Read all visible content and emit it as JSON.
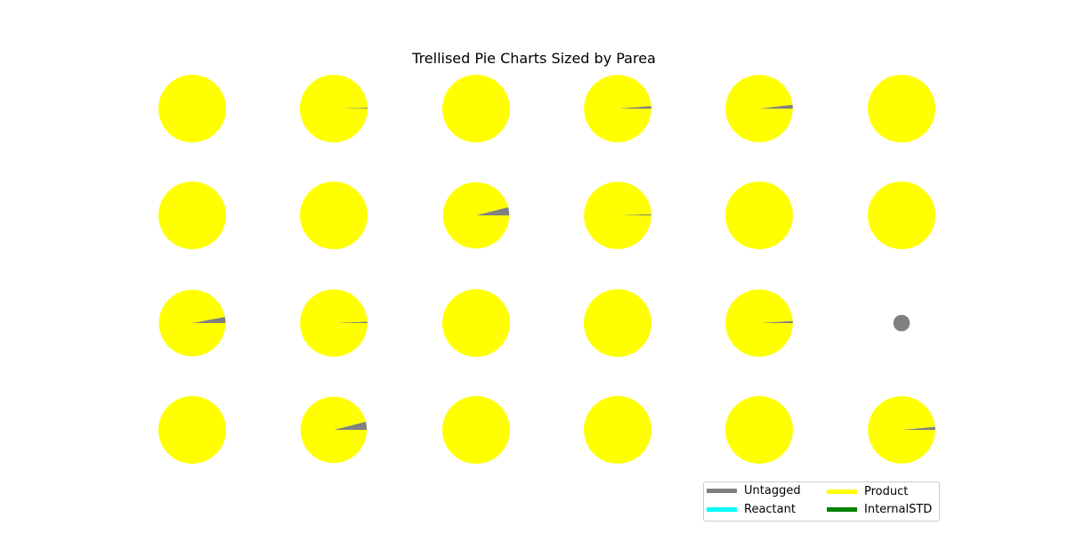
{
  "chart_data": {
    "type": "pie",
    "title": "Trellised Pie Charts Sized by Parea",
    "grid": {
      "rows": 4,
      "cols": 6
    },
    "categories": [
      "Untagged",
      "Product",
      "Reactant",
      "InternalSTD"
    ],
    "colors": {
      "Untagged": "#808080",
      "Product": "#ffff00",
      "Reactant": "#00ffff",
      "InternalSTD": "#008000"
    },
    "legend": {
      "placement": "bottom-right",
      "columns": 2,
      "order": [
        "Untagged",
        "Reactant",
        "Product",
        "InternalSTD"
      ]
    },
    "pies": [
      {
        "row": 1,
        "col": 1,
        "relative_size": 1.0,
        "values": {
          "Untagged": 0.0,
          "Product": 1.0,
          "Reactant": 0,
          "InternalSTD": 0
        }
      },
      {
        "row": 1,
        "col": 2,
        "relative_size": 1.0,
        "values": {
          "Untagged": 0.004,
          "Product": 0.996,
          "Reactant": 0,
          "InternalSTD": 0
        }
      },
      {
        "row": 1,
        "col": 3,
        "relative_size": 1.0,
        "values": {
          "Untagged": 0.0,
          "Product": 1.0,
          "Reactant": 0,
          "InternalSTD": 0
        }
      },
      {
        "row": 1,
        "col": 4,
        "relative_size": 0.99,
        "values": {
          "Untagged": 0.012,
          "Product": 0.988,
          "Reactant": 0,
          "InternalSTD": 0
        }
      },
      {
        "row": 1,
        "col": 5,
        "relative_size": 0.99,
        "values": {
          "Untagged": 0.018,
          "Product": 0.982,
          "Reactant": 0,
          "InternalSTD": 0
        }
      },
      {
        "row": 1,
        "col": 6,
        "relative_size": 1.0,
        "values": {
          "Untagged": 0.0,
          "Product": 1.0,
          "Reactant": 0,
          "InternalSTD": 0
        }
      },
      {
        "row": 2,
        "col": 1,
        "relative_size": 1.0,
        "values": {
          "Untagged": 0.0,
          "Product": 1.0,
          "Reactant": 0,
          "InternalSTD": 0
        }
      },
      {
        "row": 2,
        "col": 2,
        "relative_size": 1.0,
        "values": {
          "Untagged": 0.0,
          "Product": 1.0,
          "Reactant": 0,
          "InternalSTD": 0
        }
      },
      {
        "row": 2,
        "col": 3,
        "relative_size": 0.96,
        "values": {
          "Untagged": 0.04,
          "Product": 0.96,
          "Reactant": 0,
          "InternalSTD": 0
        }
      },
      {
        "row": 2,
        "col": 4,
        "relative_size": 0.99,
        "values": {
          "Untagged": 0.006,
          "Product": 0.994,
          "Reactant": 0,
          "InternalSTD": 0
        }
      },
      {
        "row": 2,
        "col": 5,
        "relative_size": 1.0,
        "values": {
          "Untagged": 0.0,
          "Product": 1.0,
          "Reactant": 0,
          "InternalSTD": 0
        }
      },
      {
        "row": 2,
        "col": 6,
        "relative_size": 1.0,
        "values": {
          "Untagged": 0.0,
          "Product": 1.0,
          "Reactant": 0,
          "InternalSTD": 0
        }
      },
      {
        "row": 3,
        "col": 1,
        "relative_size": 0.97,
        "values": {
          "Untagged": 0.03,
          "Product": 0.97,
          "Reactant": 0,
          "InternalSTD": 0
        }
      },
      {
        "row": 3,
        "col": 2,
        "relative_size": 0.99,
        "values": {
          "Untagged": 0.007,
          "Product": 0.993,
          "Reactant": 0,
          "InternalSTD": 0
        }
      },
      {
        "row": 3,
        "col": 3,
        "relative_size": 1.0,
        "values": {
          "Untagged": 0.0,
          "Product": 1.0,
          "Reactant": 0,
          "InternalSTD": 0
        }
      },
      {
        "row": 3,
        "col": 4,
        "relative_size": 1.0,
        "values": {
          "Untagged": 0.0,
          "Product": 1.0,
          "Reactant": 0,
          "InternalSTD": 0
        }
      },
      {
        "row": 3,
        "col": 5,
        "relative_size": 0.99,
        "values": {
          "Untagged": 0.01,
          "Product": 0.99,
          "Reactant": 0,
          "InternalSTD": 0
        }
      },
      {
        "row": 3,
        "col": 6,
        "relative_size": 0.06,
        "values": {
          "Untagged": 1.0,
          "Product": 0.0,
          "Reactant": 0,
          "InternalSTD": 0
        }
      },
      {
        "row": 4,
        "col": 1,
        "relative_size": 1.0,
        "values": {
          "Untagged": 0.0,
          "Product": 1.0,
          "Reactant": 0,
          "InternalSTD": 0
        }
      },
      {
        "row": 4,
        "col": 2,
        "relative_size": 0.96,
        "values": {
          "Untagged": 0.04,
          "Product": 0.96,
          "Reactant": 0,
          "InternalSTD": 0
        }
      },
      {
        "row": 4,
        "col": 3,
        "relative_size": 1.0,
        "values": {
          "Untagged": 0.0,
          "Product": 1.0,
          "Reactant": 0,
          "InternalSTD": 0
        }
      },
      {
        "row": 4,
        "col": 4,
        "relative_size": 1.0,
        "values": {
          "Untagged": 0.0,
          "Product": 1.0,
          "Reactant": 0,
          "InternalSTD": 0
        }
      },
      {
        "row": 4,
        "col": 5,
        "relative_size": 1.0,
        "values": {
          "Untagged": 0.0,
          "Product": 1.0,
          "Reactant": 0,
          "InternalSTD": 0
        }
      },
      {
        "row": 4,
        "col": 6,
        "relative_size": 0.99,
        "values": {
          "Untagged": 0.015,
          "Product": 0.985,
          "Reactant": 0,
          "InternalSTD": 0
        }
      }
    ]
  }
}
